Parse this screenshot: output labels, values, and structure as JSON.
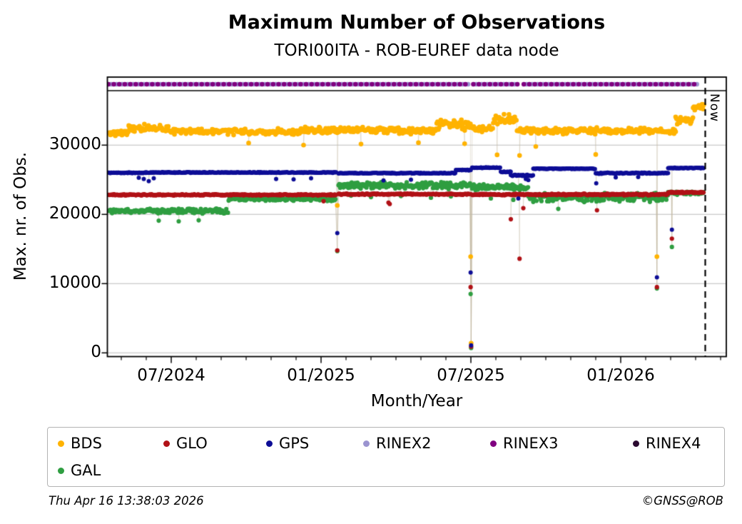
{
  "header": {
    "title": "Maximum Number of Observations",
    "subtitle": "TORI00ITA - ROB-EUREF data node"
  },
  "footer": {
    "timestamp": "Thu Apr 16 13:38:03 2026",
    "credit": "©GNSS@ROB"
  },
  "chart_data": {
    "type": "scatter",
    "title": "Maximum Number of Observations",
    "subtitle": "TORI00ITA - ROB-EUREF data node",
    "xlabel": "Month/Year",
    "ylabel": "Max. nr. of Obs.",
    "x_axis": {
      "epoch": "months since 2024-04-01",
      "range_months": [
        0.43,
        25.2
      ],
      "major_ticks": [
        {
          "month": 3,
          "label": "07/2024"
        },
        {
          "month": 9,
          "label": "01/2025"
        },
        {
          "month": 15,
          "label": "07/2025"
        },
        {
          "month": 21,
          "label": "01/2026"
        }
      ],
      "minor_tick_months": [
        1,
        2,
        4,
        5,
        6,
        7,
        8,
        10,
        11,
        12,
        13,
        14,
        16,
        17,
        18,
        19,
        20,
        22,
        23,
        24,
        25
      ],
      "grid": false
    },
    "y_axis": {
      "tick_values": [
        0,
        10000,
        20000,
        30000
      ],
      "tick_labels": [
        "0",
        "10000",
        "20000",
        "30000"
      ],
      "range": [
        -500,
        39800
      ],
      "grid": true
    },
    "now_line": {
      "month": 24.38,
      "label": "Now",
      "style": "dashed",
      "color": "#000000"
    },
    "rinex_band": {
      "value": 38800,
      "coverage_months": [
        [
          0.48,
          14.9
        ],
        [
          15.1,
          16.88
        ],
        [
          17.12,
          24.07
        ]
      ],
      "series_order": [
        "RINEX4",
        "RINEX2",
        "RINEX3"
      ],
      "note": "RINEX2/RINEX4 markers almost fully hidden beneath RINEX3"
    },
    "series": [
      {
        "name": "BDS",
        "color": "#FFB300",
        "radius": 3.3,
        "segments": [
          [
            0.5,
            1.3,
            31750,
            520
          ],
          [
            1.3,
            2.9,
            32450,
            620
          ],
          [
            2.9,
            8.2,
            31950,
            520
          ],
          [
            8.2,
            12.1,
            32150,
            520
          ],
          [
            12.1,
            13.6,
            32050,
            540
          ],
          [
            13.6,
            15.0,
            32900,
            850
          ],
          [
            15.05,
            15.9,
            32350,
            600
          ],
          [
            15.9,
            16.85,
            33700,
            900
          ],
          [
            16.85,
            23.2,
            32050,
            540
          ],
          [
            23.2,
            23.9,
            33500,
            700
          ],
          [
            23.9,
            24.33,
            35400,
            650
          ]
        ],
        "outliers": [
          [
            6.1,
            30300
          ],
          [
            8.3,
            30000
          ],
          [
            9.65,
            21300
          ],
          [
            10.6,
            30150
          ],
          [
            12.9,
            30350
          ],
          [
            14.75,
            30200
          ],
          [
            14.99,
            13900
          ],
          [
            15.01,
            1400
          ],
          [
            16.05,
            28600
          ],
          [
            16.95,
            28500
          ],
          [
            17.6,
            29800
          ],
          [
            20.0,
            28650
          ],
          [
            22.45,
            13900
          ]
        ]
      },
      {
        "name": "GLO",
        "color": "#B11116",
        "radius": 3.1,
        "segments": [
          [
            0.5,
            9.6,
            22820,
            110
          ],
          [
            9.7,
            15.0,
            22920,
            110
          ],
          [
            15.05,
            22.9,
            22870,
            130
          ],
          [
            22.9,
            24.33,
            23180,
            110
          ]
        ],
        "outliers": [
          [
            9.1,
            21900
          ],
          [
            9.65,
            14800
          ],
          [
            11.7,
            21700
          ],
          [
            11.75,
            21500
          ],
          [
            14.99,
            9500
          ],
          [
            15.01,
            900
          ],
          [
            16.6,
            19300
          ],
          [
            16.95,
            13600
          ],
          [
            17.1,
            20900
          ],
          [
            20.05,
            20600
          ],
          [
            22.45,
            9500
          ],
          [
            23.05,
            16500
          ]
        ]
      },
      {
        "name": "GPS",
        "color": "#0D0D96",
        "radius": 3.0,
        "segments": [
          [
            0.5,
            2.0,
            26000,
            70
          ],
          [
            2.0,
            9.6,
            26050,
            70
          ],
          [
            9.7,
            14.4,
            25950,
            80
          ],
          [
            14.4,
            15.0,
            26400,
            70
          ],
          [
            15.05,
            16.2,
            26750,
            70
          ],
          [
            16.2,
            16.6,
            26150,
            90
          ],
          [
            16.6,
            17.5,
            25650,
            130
          ],
          [
            17.5,
            20.0,
            26600,
            60
          ],
          [
            20.0,
            22.9,
            25950,
            110
          ],
          [
            22.9,
            24.33,
            26700,
            60
          ]
        ],
        "outliers": [
          [
            1.7,
            25300
          ],
          [
            1.9,
            25100
          ],
          [
            2.1,
            24800
          ],
          [
            2.3,
            25200
          ],
          [
            7.2,
            25100
          ],
          [
            7.9,
            25050
          ],
          [
            8.6,
            25200
          ],
          [
            9.65,
            17300
          ],
          [
            11.5,
            24900
          ],
          [
            12.6,
            25000
          ],
          [
            14.99,
            11600
          ],
          [
            15.01,
            1100
          ],
          [
            16.9,
            22300
          ],
          [
            17.2,
            25100
          ],
          [
            17.3,
            24950
          ],
          [
            20.02,
            24500
          ],
          [
            20.8,
            25350
          ],
          [
            21.7,
            25400
          ],
          [
            22.45,
            10900
          ],
          [
            23.05,
            17800
          ]
        ]
      },
      {
        "name": "RINEX2",
        "color": "#9B94D0",
        "radius": 3.2,
        "band": true
      },
      {
        "name": "RINEX3",
        "color": "#800080",
        "radius": 3.3,
        "band": true
      },
      {
        "name": "RINEX4",
        "color": "#2B0A30",
        "radius": 2.6,
        "band": true
      },
      {
        "name": "GAL",
        "color": "#2F9E41",
        "radius": 3.1,
        "segments": [
          [
            0.5,
            5.3,
            20500,
            430
          ],
          [
            5.3,
            9.6,
            22200,
            330
          ],
          [
            9.7,
            15.0,
            24200,
            600
          ],
          [
            15.05,
            17.3,
            23950,
            550
          ],
          [
            17.3,
            22.9,
            22400,
            750
          ],
          [
            22.9,
            24.33,
            23080,
            260
          ]
        ],
        "outliers": [
          [
            2.5,
            19100
          ],
          [
            3.3,
            19000
          ],
          [
            4.1,
            19150
          ],
          [
            9.65,
            14700
          ],
          [
            10.2,
            22700
          ],
          [
            11.0,
            22500
          ],
          [
            12.2,
            22650
          ],
          [
            13.4,
            22400
          ],
          [
            14.2,
            22600
          ],
          [
            14.99,
            8500
          ],
          [
            15.01,
            700
          ],
          [
            15.8,
            22300
          ],
          [
            16.7,
            22100
          ],
          [
            18.5,
            20800
          ],
          [
            22.45,
            9300
          ],
          [
            23.05,
            15300
          ]
        ]
      }
    ],
    "legend": {
      "position": "bottom",
      "items": [
        {
          "label": "BDS",
          "color": "#FFB300"
        },
        {
          "label": "GLO",
          "color": "#B11116"
        },
        {
          "label": "GPS",
          "color": "#0D0D96"
        },
        {
          "label": "RINEX2",
          "color": "#9B94D0"
        },
        {
          "label": "RINEX3",
          "color": "#800080"
        },
        {
          "label": "RINEX4",
          "color": "#2B0A30"
        },
        {
          "label": "GAL",
          "color": "#2F9E41"
        }
      ]
    }
  }
}
